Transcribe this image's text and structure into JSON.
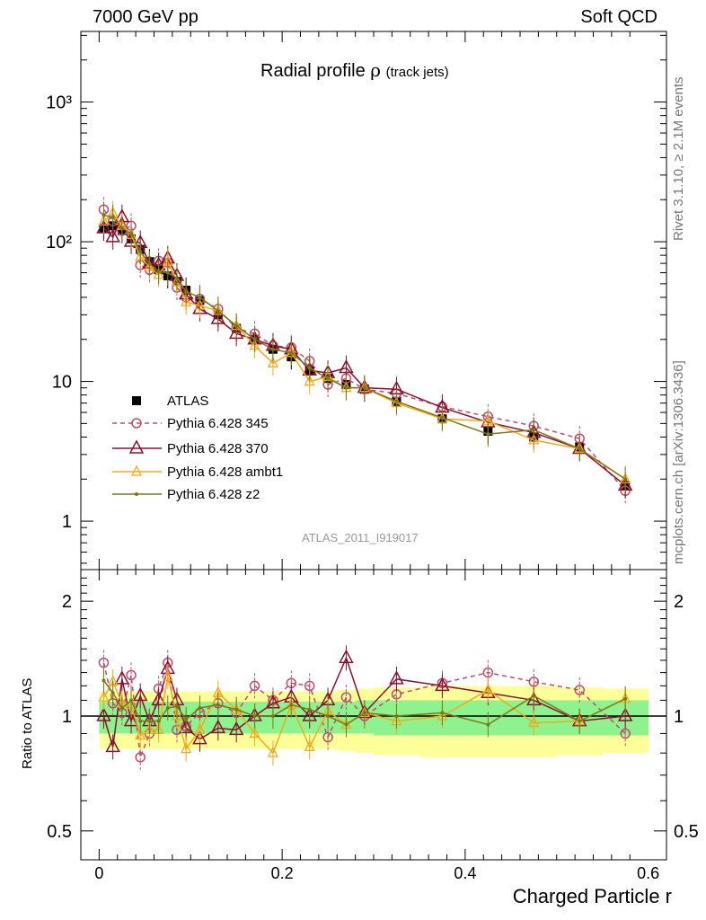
{
  "header": {
    "left": "7000 GeV pp",
    "right": "Soft QCD"
  },
  "side_text": {
    "top": "Rivet 3.1.10, ≥ 2.1M events",
    "bottom": "mcplots.cern.ch [arXiv:1306.3436]"
  },
  "watermark": "ATLAS_2011_I919017",
  "colors": {
    "atlas": "#000000",
    "p345": "#c04b6d",
    "p370": "#8b1030",
    "ambt1": "#f2a91e",
    "z2": "#7a7a14",
    "band_inner": "#8ef28e",
    "band_outer": "#ffff99"
  },
  "chart_data": [
    {
      "type": "line",
      "title": "Radial profile",
      "title_symbol": "ρ",
      "title_sub": "(track jets)",
      "xlabel": "Charged Particle r",
      "ylabel": "",
      "y_scale": "log",
      "xlim": [
        -0.02,
        0.62
      ],
      "ylim": [
        0.45,
        3200
      ],
      "y_tick_labels": [
        "1",
        "10",
        "10²",
        "10³"
      ],
      "x": [
        0.005,
        0.015,
        0.025,
        0.035,
        0.045,
        0.055,
        0.065,
        0.075,
        0.085,
        0.095,
        0.11,
        0.13,
        0.15,
        0.17,
        0.19,
        0.21,
        0.23,
        0.25,
        0.27,
        0.29,
        0.325,
        0.375,
        0.425,
        0.475,
        0.525,
        0.575
      ],
      "series": [
        {
          "name": "ATLAS",
          "style": "square",
          "values": [
            125,
            130,
            120,
            105,
            88,
            72,
            63,
            57,
            52,
            45,
            38,
            30,
            24,
            20,
            17,
            15,
            12,
            10.5,
            9.5,
            8.8,
            7.2,
            5.4,
            4.4,
            4.0,
            3.4,
            1.8
          ]
        },
        {
          "name": "Pythia 6.428 345",
          "style": "circle-dashed",
          "values": [
            170,
            140,
            120,
            130,
            68,
            63,
            73,
            71,
            47,
            40,
            39,
            33,
            24,
            22,
            18,
            17.5,
            14,
            9.5,
            10.5,
            8.8,
            8.2,
            6.6,
            5.6,
            4.8,
            3.9,
            1.65
          ]
        },
        {
          "name": "Pythia 6.428 370",
          "style": "triangle-large",
          "values": [
            125,
            108,
            150,
            100,
            98,
            70,
            68,
            76,
            57,
            42,
            33,
            28,
            22,
            20,
            18,
            17,
            12,
            11.5,
            12.5,
            9.0,
            8.8,
            6.5,
            5.1,
            4.3,
            3.3,
            1.8
          ]
        },
        {
          "name": "Pythia 6.428 ambt1",
          "style": "triangle-small",
          "values": [
            140,
            160,
            130,
            112,
            78,
            66,
            58,
            72,
            52,
            37,
            35,
            32,
            25,
            18,
            13.5,
            16,
            10,
            10.8,
            9.0,
            9.0,
            7.0,
            5.4,
            5.2,
            3.8,
            3.3,
            2.0
          ]
        },
        {
          "name": "Pythia 6.428 z2",
          "style": "dot",
          "values": [
            155,
            150,
            125,
            115,
            85,
            70,
            61,
            60,
            55,
            44,
            40,
            32,
            25,
            20,
            17,
            16,
            12.5,
            10.5,
            9.0,
            9.0,
            7.2,
            5.5,
            4.2,
            4.5,
            3.3,
            2.0
          ]
        }
      ]
    },
    {
      "type": "line",
      "title": "",
      "xlabel": "Charged Particle r",
      "ylabel": "Ratio to ATLAS",
      "y_scale": "log",
      "ylim": [
        0.42,
        2.42
      ],
      "x_tick_labels": [
        "0",
        "0.2",
        "0.4",
        "0.6"
      ],
      "y_tick_labels": [
        "0.5",
        "1",
        "2"
      ],
      "x": [
        0.005,
        0.015,
        0.025,
        0.035,
        0.045,
        0.055,
        0.065,
        0.075,
        0.085,
        0.095,
        0.11,
        0.13,
        0.15,
        0.17,
        0.19,
        0.21,
        0.23,
        0.25,
        0.27,
        0.29,
        0.325,
        0.375,
        0.425,
        0.475,
        0.525,
        0.575
      ],
      "bands": {
        "x_edges": [
          0,
          0.01,
          0.02,
          0.03,
          0.04,
          0.05,
          0.06,
          0.07,
          0.08,
          0.09,
          0.1,
          0.12,
          0.14,
          0.16,
          0.18,
          0.2,
          0.22,
          0.24,
          0.26,
          0.28,
          0.3,
          0.35,
          0.4,
          0.45,
          0.5,
          0.55,
          0.6
        ],
        "outer_low": [
          0.82,
          0.82,
          0.82,
          0.82,
          0.82,
          0.82,
          0.82,
          0.82,
          0.82,
          0.82,
          0.82,
          0.82,
          0.82,
          0.82,
          0.82,
          0.82,
          0.82,
          0.82,
          0.81,
          0.8,
          0.79,
          0.78,
          0.78,
          0.78,
          0.79,
          0.8
        ],
        "outer_high": [
          1.16,
          1.16,
          1.16,
          1.16,
          1.16,
          1.16,
          1.16,
          1.16,
          1.16,
          1.16,
          1.16,
          1.16,
          1.16,
          1.16,
          1.16,
          1.16,
          1.16,
          1.16,
          1.17,
          1.18,
          1.19,
          1.2,
          1.2,
          1.2,
          1.19,
          1.18
        ],
        "inner_low": [
          0.9,
          0.9,
          0.9,
          0.9,
          0.9,
          0.9,
          0.9,
          0.9,
          0.9,
          0.9,
          0.9,
          0.9,
          0.9,
          0.9,
          0.9,
          0.9,
          0.9,
          0.9,
          0.9,
          0.9,
          0.89,
          0.89,
          0.89,
          0.89,
          0.89,
          0.89
        ],
        "inner_high": [
          1.09,
          1.09,
          1.09,
          1.09,
          1.09,
          1.09,
          1.09,
          1.09,
          1.09,
          1.09,
          1.09,
          1.09,
          1.09,
          1.09,
          1.09,
          1.09,
          1.09,
          1.09,
          1.09,
          1.1,
          1.1,
          1.1,
          1.1,
          1.1,
          1.1,
          1.1
        ]
      },
      "series": [
        {
          "name": "Pythia 6.428 345",
          "style": "circle-dashed",
          "values": [
            1.38,
            1.08,
            1.02,
            1.28,
            0.78,
            0.9,
            1.18,
            1.38,
            0.92,
            0.94,
            1.02,
            1.08,
            1.02,
            1.2,
            1.1,
            1.22,
            1.2,
            0.88,
            1.12,
            1.0,
            1.14,
            1.22,
            1.3,
            1.23,
            1.17,
            0.9
          ]
        },
        {
          "name": "Pythia 6.428 370",
          "style": "triangle-large",
          "values": [
            1.0,
            0.83,
            1.25,
            0.97,
            1.13,
            0.97,
            1.1,
            1.33,
            1.1,
            0.93,
            0.87,
            0.93,
            0.92,
            1.0,
            1.08,
            1.12,
            1.0,
            1.1,
            1.42,
            1.02,
            1.25,
            1.2,
            1.15,
            1.1,
            0.97,
            1.0
          ]
        },
        {
          "name": "Pythia 6.428 ambt1",
          "style": "triangle-small",
          "values": [
            1.12,
            1.23,
            1.08,
            1.07,
            0.89,
            0.92,
            0.92,
            1.27,
            1.0,
            0.82,
            0.92,
            1.15,
            1.04,
            0.9,
            0.8,
            1.07,
            0.83,
            1.03,
            0.95,
            1.02,
            0.97,
            1.0,
            1.17,
            0.96,
            0.97,
            1.11
          ]
        },
        {
          "name": "Pythia 6.428 z2",
          "style": "dot",
          "values": [
            1.24,
            1.15,
            1.05,
            1.1,
            0.97,
            0.97,
            0.97,
            1.05,
            1.06,
            0.98,
            1.05,
            1.07,
            1.04,
            1.0,
            1.0,
            1.07,
            1.04,
            1.0,
            0.95,
            1.02,
            1.0,
            1.02,
            0.95,
            1.13,
            0.97,
            1.11
          ]
        }
      ]
    }
  ]
}
